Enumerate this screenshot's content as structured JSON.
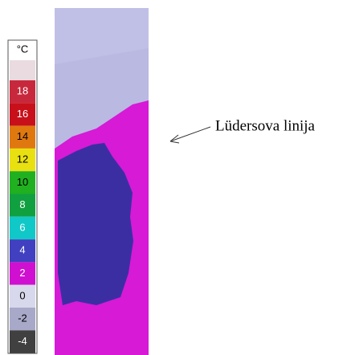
{
  "scale": {
    "unit": "°C",
    "labels": [
      18,
      16,
      14,
      12,
      10,
      8,
      6,
      4,
      2,
      0,
      -2,
      -4
    ]
  },
  "annotation": "Lüdersova linija"
}
